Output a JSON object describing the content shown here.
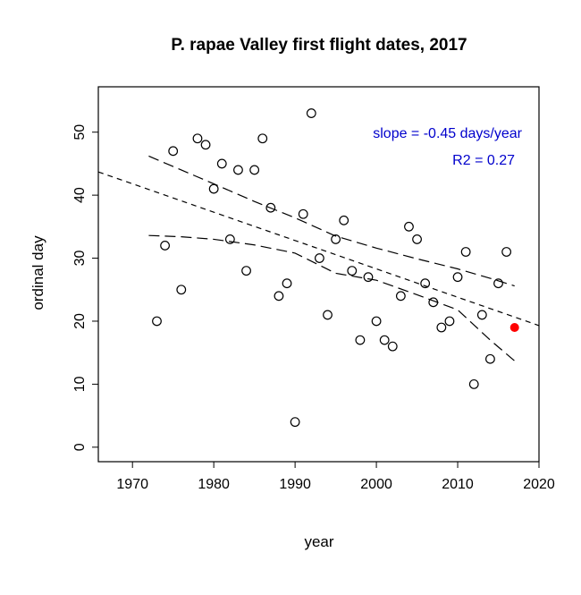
{
  "chart_data": {
    "type": "scatter",
    "title": "P. rapae Valley first flight dates, 2017",
    "xlabel": "year",
    "ylabel": "ordinal day",
    "xlim": [
      1965.8,
      2020
    ],
    "ylim": [
      -2.3,
      57.2
    ],
    "xticks": [
      1970,
      1980,
      1990,
      2000,
      2010,
      2020
    ],
    "yticks": [
      0,
      10,
      20,
      30,
      40,
      50
    ],
    "grid": false,
    "points": {
      "x": [
        1973,
        1974,
        1975,
        1976,
        1978,
        1979,
        1980,
        1981,
        1982,
        1983,
        1984,
        1985,
        1986,
        1987,
        1988,
        1989,
        1990,
        1991,
        1992,
        1993,
        1994,
        1995,
        1996,
        1997,
        1998,
        1999,
        2000,
        2001,
        2002,
        2003,
        2004,
        2005,
        2006,
        2007,
        2008,
        2009,
        2010,
        2011,
        2012,
        2013,
        2014,
        2015,
        2016
      ],
      "y": [
        20,
        32,
        47,
        25,
        49,
        48,
        41,
        45,
        33,
        44,
        28,
        44,
        49,
        38,
        24,
        26,
        4,
        37,
        53,
        30,
        21,
        33,
        36,
        28,
        17,
        27,
        20,
        17,
        16,
        24,
        35,
        33,
        26,
        23,
        19,
        20,
        27,
        31,
        10,
        21,
        14,
        26,
        31
      ]
    },
    "highlight": {
      "x": 2017,
      "y": 19,
      "color": "#ff0000"
    },
    "fit_line": {
      "slope": -0.45,
      "intercept_at_1995": 30.55
    },
    "confidence_band": {
      "x": [
        1972,
        1976,
        1980,
        1985,
        1990,
        1995,
        2000,
        2005,
        2010,
        2014,
        2017
      ],
      "upper": [
        46.2,
        44.0,
        41.8,
        39.0,
        36.4,
        33.5,
        31.6,
        29.9,
        28.3,
        26.8,
        25.6
      ],
      "lower": [
        33.6,
        33.4,
        33.0,
        32.1,
        30.8,
        27.6,
        26.5,
        24.2,
        21.8,
        17.0,
        13.7
      ]
    },
    "annotations": [
      "slope = -0.45 days/year",
      "R2 = 0.27"
    ],
    "annotation_color": "#0000cc"
  }
}
